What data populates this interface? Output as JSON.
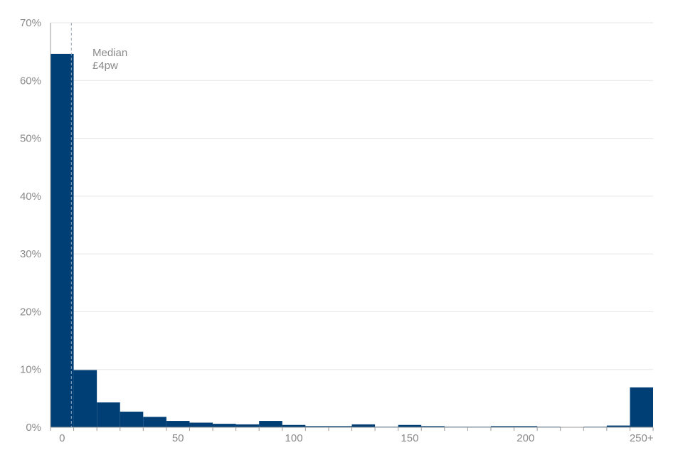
{
  "chart_data": {
    "type": "bar",
    "title": "",
    "xlabel": "",
    "ylabel": "",
    "ylim": [
      0,
      70
    ],
    "y_unit": "%",
    "y_ticks": [
      0,
      10,
      20,
      30,
      40,
      50,
      60,
      70
    ],
    "y_tick_labels": [
      "0%",
      "10%",
      "20%",
      "30%",
      "40%",
      "50%",
      "60%",
      "70%"
    ],
    "x_ticks": [
      0,
      50,
      100,
      150,
      200,
      250
    ],
    "x_tick_labels": [
      "0",
      "50",
      "100",
      "150",
      "200",
      "250+"
    ],
    "bin_width": 10,
    "bins": [
      {
        "start": -5,
        "value": 64.6
      },
      {
        "start": 5,
        "value": 9.9
      },
      {
        "start": 15,
        "value": 4.3
      },
      {
        "start": 25,
        "value": 2.7
      },
      {
        "start": 35,
        "value": 1.8
      },
      {
        "start": 45,
        "value": 1.1
      },
      {
        "start": 55,
        "value": 0.8
      },
      {
        "start": 65,
        "value": 0.6
      },
      {
        "start": 75,
        "value": 0.5
      },
      {
        "start": 85,
        "value": 1.1
      },
      {
        "start": 95,
        "value": 0.4
      },
      {
        "start": 105,
        "value": 0.2
      },
      {
        "start": 115,
        "value": 0.2
      },
      {
        "start": 125,
        "value": 0.5
      },
      {
        "start": 135,
        "value": 0.1
      },
      {
        "start": 145,
        "value": 0.4
      },
      {
        "start": 155,
        "value": 0.2
      },
      {
        "start": 165,
        "value": 0.1
      },
      {
        "start": 175,
        "value": 0.1
      },
      {
        "start": 185,
        "value": 0.2
      },
      {
        "start": 195,
        "value": 0.2
      },
      {
        "start": 205,
        "value": 0.1
      },
      {
        "start": 215,
        "value": 0.0
      },
      {
        "start": 225,
        "value": 0.1
      },
      {
        "start": 235,
        "value": 0.3
      },
      {
        "start": 245,
        "value": 6.9
      }
    ],
    "median": {
      "value": 4,
      "label_line1": "Median",
      "label_line2": "£4pw"
    },
    "grid": true,
    "colors": {
      "bar": "#003f75",
      "grid": "#e6e6e6",
      "axis": "#999999",
      "text": "#8a8a8a",
      "median_line": "#9aa7b8"
    }
  }
}
